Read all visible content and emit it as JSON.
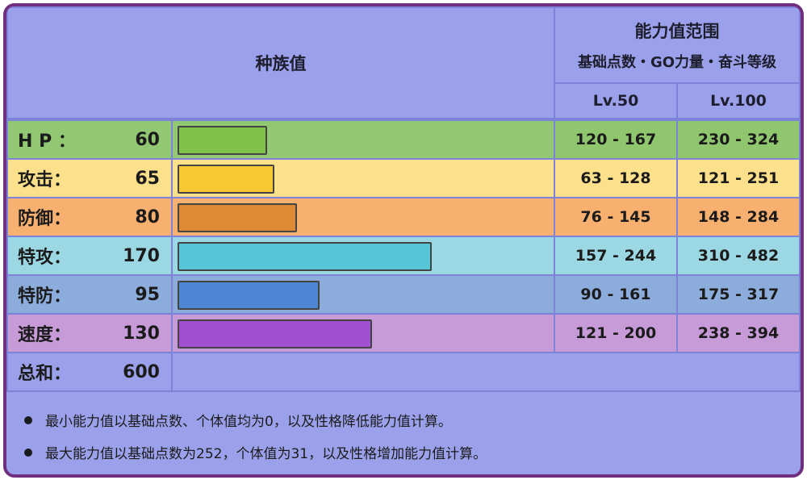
{
  "header": {
    "base_stats_title": "种族值",
    "stat_range_title": "能力值范围",
    "stat_range_subtitle": "基础点数・GO力量・奋斗等级",
    "lv50_label": "Lv.50",
    "lv100_label": "Lv.100"
  },
  "rows": [
    {
      "label": "H P ：",
      "value": "60",
      "base": 60,
      "lv50": "120 - 167",
      "lv100": "230 - 324",
      "row_color": "#92c873",
      "bar_color": "#7fc24a",
      "cell_color": "#8fc66e"
    },
    {
      "label": "攻击：",
      "value": "65",
      "base": 65,
      "lv50": "63 - 128",
      "lv100": "121 - 251",
      "row_color": "#fde08c",
      "bar_color": "#f8c834",
      "cell_color": "#fde08c"
    },
    {
      "label": "防御：",
      "value": "80",
      "base": 80,
      "lv50": "76 - 145",
      "lv100": "148 - 284",
      "row_color": "#f7b070",
      "bar_color": "#dc8a34",
      "cell_color": "#f7b070"
    },
    {
      "label": "特攻：",
      "value": "170",
      "base": 170,
      "lv50": "157 - 244",
      "lv100": "310 - 482",
      "row_color": "#9bd8e4",
      "bar_color": "#56c6d6",
      "cell_color": "#9bd8e4"
    },
    {
      "label": "特防：",
      "value": "95",
      "base": 95,
      "lv50": "90 - 161",
      "lv100": "175 - 317",
      "row_color": "#8cacdc",
      "bar_color": "#4d86d2",
      "cell_color": "#8cacdc"
    },
    {
      "label": "速度：",
      "value": "130",
      "base": 130,
      "lv50": "121 - 200",
      "lv100": "238 - 394",
      "row_color": "#c79ad8",
      "bar_color": "#a04fd0",
      "cell_color": "#c79ad8"
    }
  ],
  "total": {
    "label": "总和：",
    "value": "600"
  },
  "notes": [
    "最小能力值以基础点数、个体值均为0，以及性格降低能力值计算。",
    "最大能力值以基础点数为252，个体值为31，以及性格增加能力值计算。"
  ]
}
